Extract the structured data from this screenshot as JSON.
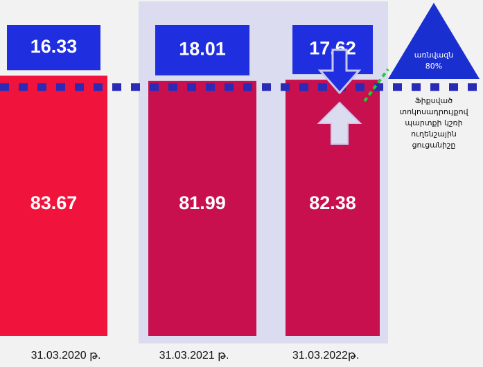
{
  "chart_data": {
    "type": "stacked_bar",
    "categories": [
      "31.03.2020 թ.",
      "31.03.2021 թ.",
      "31.03.2022թ."
    ],
    "series": [
      {
        "colors": [
          "#f0143c",
          "#c8104e",
          "#c8104e"
        ],
        "values": [
          83.67,
          81.99,
          82.38
        ]
      },
      {
        "color": "#1f2fe0",
        "values": [
          16.33,
          18.01,
          17.62
        ]
      }
    ],
    "ylim": [
      0,
      100
    ],
    "reference_line": {
      "value": 80,
      "color": "#2a2ab8",
      "label": "առնվազն",
      "value_label": "80%"
    },
    "annotation": [
      "Ֆիքսված",
      "տոկոսադրույքով",
      "պարտքի կշռի",
      "ուղենշային",
      "ցուցանիշը"
    ]
  }
}
